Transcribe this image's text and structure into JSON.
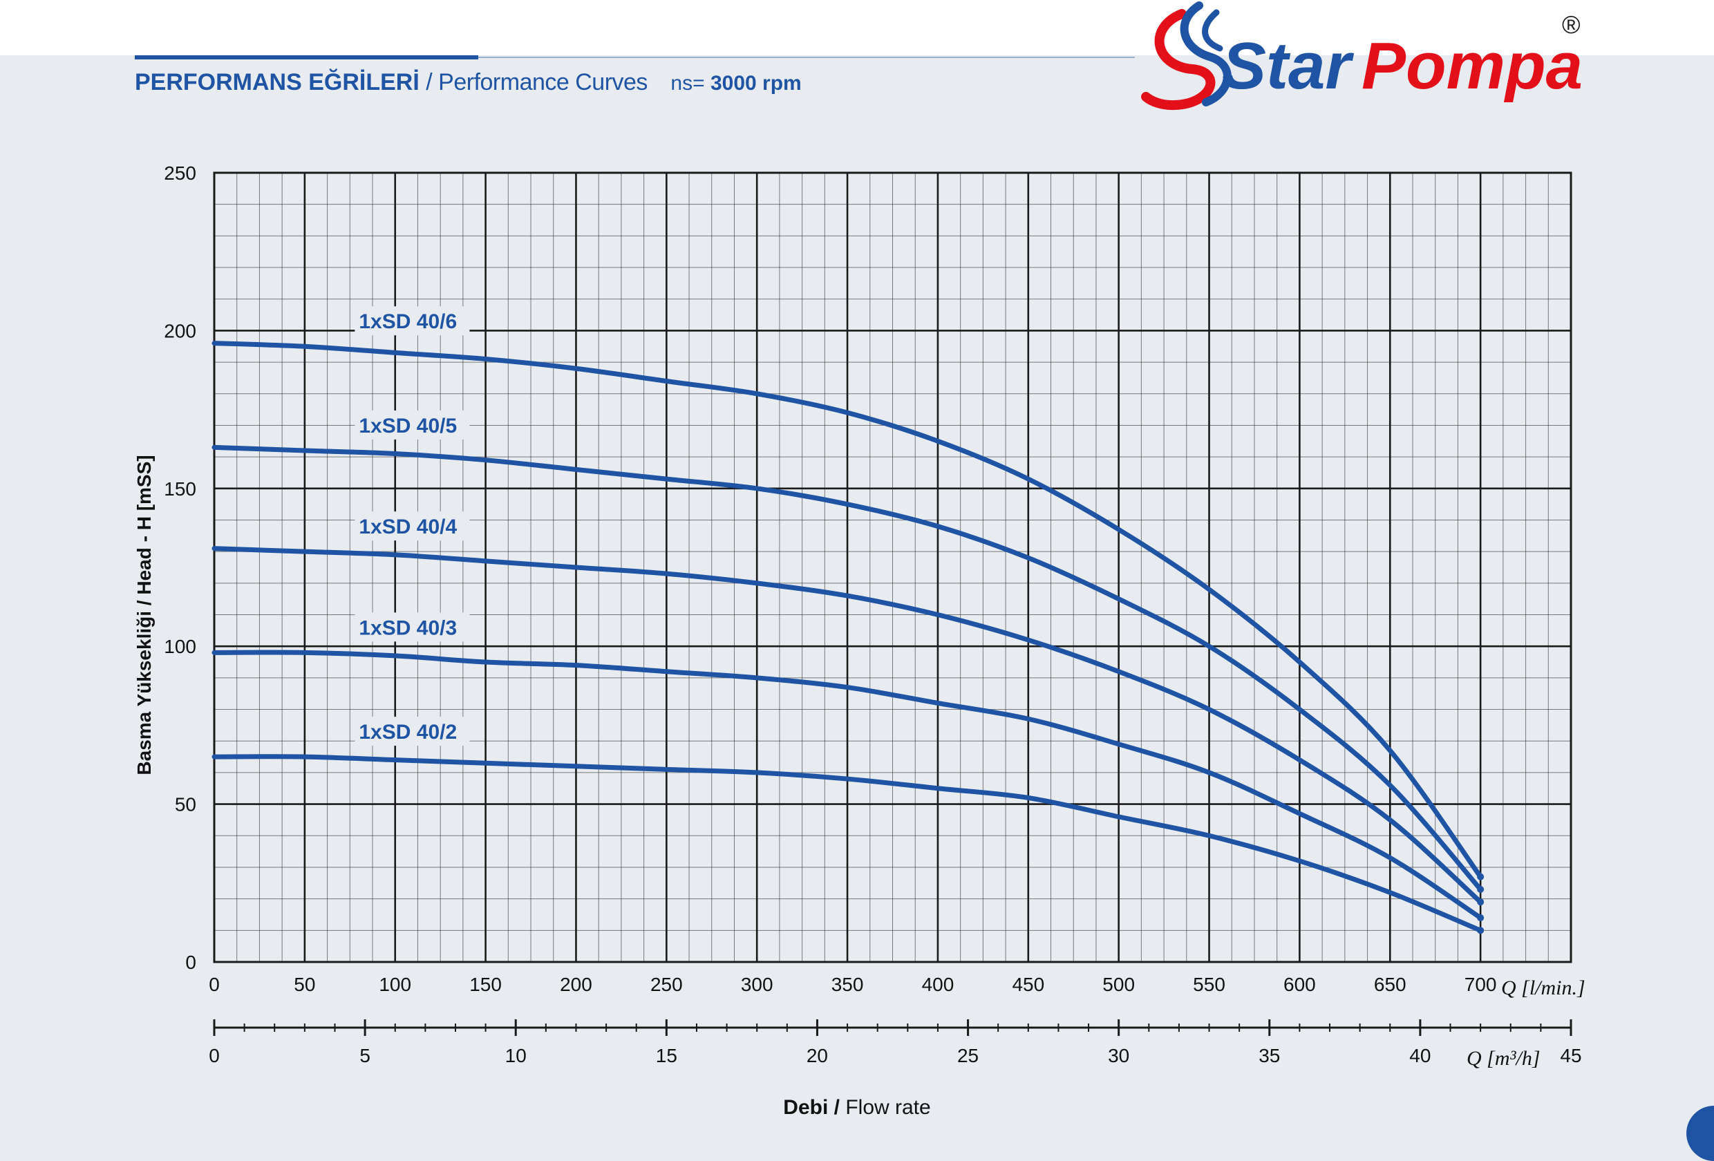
{
  "header": {
    "title_tr": "PERFORMANS EĞRİLERİ",
    "title_en": "/ Performance Curves",
    "rpm_label": "ns=",
    "rpm_value": "3000 rpm"
  },
  "brand": {
    "name_part1": "Star",
    "name_part2": "Pompa",
    "registered_mark": "®",
    "color_blue": "#1e54a3",
    "color_red": "#e3101a"
  },
  "colors": {
    "curve": "#1e54a3",
    "grid": "#1a1a1a",
    "background": "#e8ecf1"
  },
  "chart_data": {
    "type": "line",
    "title": "",
    "ylabel": "Basma Yüksekliği / Head - H [mSS]",
    "xlabel_bold": "Debi /",
    "xlabel": "Flow rate",
    "x_unit_primary": "Q [l/min.]",
    "x_unit_secondary": "Q [m³/h]",
    "xlim": [
      0,
      750
    ],
    "ylim": [
      0,
      250
    ],
    "x_ticks": [
      0,
      50,
      100,
      150,
      200,
      250,
      300,
      350,
      400,
      450,
      500,
      550,
      600,
      650,
      700
    ],
    "y_ticks": [
      0,
      50,
      100,
      150,
      200,
      250
    ],
    "x2_lim": [
      0,
      45
    ],
    "x2_ticks": [
      0,
      5,
      10,
      15,
      20,
      25,
      30,
      35,
      40,
      45
    ],
    "grid": true,
    "series": [
      {
        "name": "1xSD 40/6",
        "x": [
          0,
          50,
          100,
          150,
          200,
          250,
          300,
          350,
          400,
          450,
          500,
          550,
          600,
          650,
          700
        ],
        "y": [
          196,
          195,
          193,
          191,
          188,
          184,
          180,
          174,
          165,
          153,
          137,
          118,
          95,
          67,
          27
        ]
      },
      {
        "name": "1xSD 40/5",
        "x": [
          0,
          50,
          100,
          150,
          200,
          250,
          300,
          350,
          400,
          450,
          500,
          550,
          600,
          650,
          700
        ],
        "y": [
          163,
          162,
          161,
          159,
          156,
          153,
          150,
          145,
          138,
          128,
          115,
          100,
          80,
          56,
          23
        ]
      },
      {
        "name": "1xSD 40/4",
        "x": [
          0,
          50,
          100,
          150,
          200,
          250,
          300,
          350,
          400,
          450,
          500,
          550,
          600,
          650,
          700
        ],
        "y": [
          131,
          130,
          129,
          127,
          125,
          123,
          120,
          116,
          110,
          102,
          92,
          80,
          64,
          45,
          19
        ]
      },
      {
        "name": "1xSD 40/3",
        "x": [
          0,
          50,
          100,
          150,
          200,
          250,
          300,
          350,
          400,
          450,
          500,
          550,
          600,
          650,
          700
        ],
        "y": [
          98,
          98,
          97,
          95,
          94,
          92,
          90,
          87,
          82,
          77,
          69,
          60,
          47,
          33,
          14
        ]
      },
      {
        "name": "1xSD 40/2",
        "x": [
          0,
          50,
          100,
          150,
          200,
          250,
          300,
          350,
          400,
          450,
          500,
          550,
          600,
          650,
          700
        ],
        "y": [
          65,
          65,
          64,
          63,
          62,
          61,
          60,
          58,
          55,
          52,
          46,
          40,
          32,
          22,
          10
        ]
      }
    ]
  }
}
